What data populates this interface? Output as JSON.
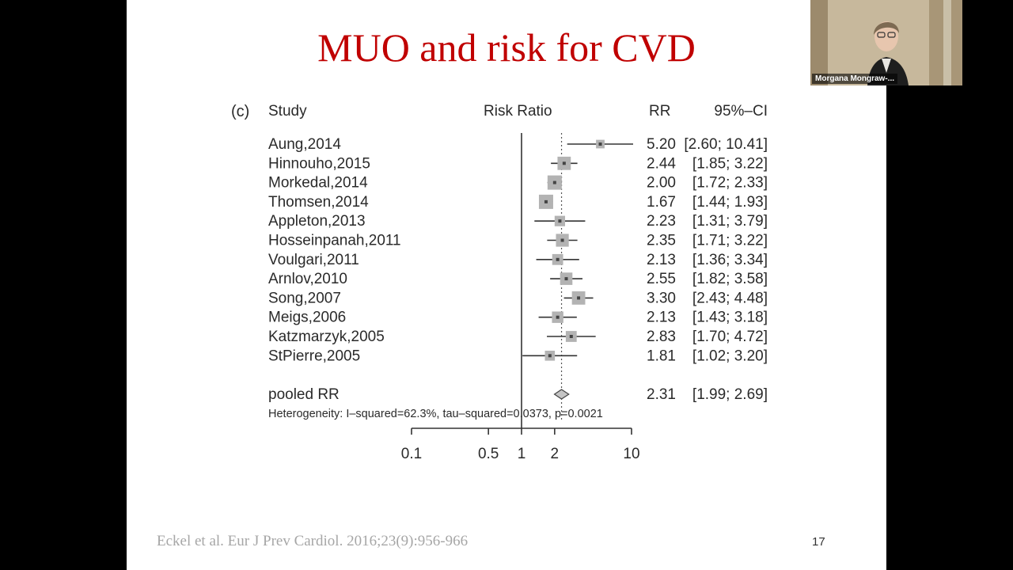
{
  "slide": {
    "title": "MUO and risk for CVD",
    "citation": "Eckel et al. Eur J Prev Cardiol. 2016;23(9):956-966",
    "page_number": "17"
  },
  "video": {
    "speaker_name": "Morgana Mongraw-..."
  },
  "chart_data": {
    "type": "forest",
    "panel_label": "(c)",
    "headers": {
      "study": "Study",
      "measure": "Risk Ratio",
      "rr": "RR",
      "ci": "95%–CI"
    },
    "x_scale": "log",
    "xlim": [
      0.1,
      10
    ],
    "x_ticks": [
      0.1,
      0.5,
      1,
      2,
      10
    ],
    "x_tick_labels": [
      "0.1",
      "0.5",
      "1",
      "2",
      "10"
    ],
    "reference_line": 1,
    "pooled_line": 2.31,
    "studies": [
      {
        "name": "Aung,2014",
        "rr": 5.2,
        "lo": 2.6,
        "hi": 10.41,
        "weight": 0.4,
        "rr_text": "5.20",
        "ci_text": "[2.60; 10.41]"
      },
      {
        "name": "Hinnouho,2015",
        "rr": 2.44,
        "lo": 1.85,
        "hi": 3.22,
        "weight": 0.9,
        "rr_text": "2.44",
        "ci_text": "[1.85; 3.22]"
      },
      {
        "name": "Morkedal,2014",
        "rr": 2.0,
        "lo": 1.72,
        "hi": 2.33,
        "weight": 1.0,
        "rr_text": "2.00",
        "ci_text": "[1.72; 2.33]"
      },
      {
        "name": "Thomsen,2014",
        "rr": 1.67,
        "lo": 1.44,
        "hi": 1.93,
        "weight": 1.0,
        "rr_text": "1.67",
        "ci_text": "[1.44; 1.93]"
      },
      {
        "name": "Appleton,2013",
        "rr": 2.23,
        "lo": 1.31,
        "hi": 3.79,
        "weight": 0.6,
        "rr_text": "2.23",
        "ci_text": "[1.31; 3.79]"
      },
      {
        "name": "Hosseinpanah,2011",
        "rr": 2.35,
        "lo": 1.71,
        "hi": 3.22,
        "weight": 0.85,
        "rr_text": "2.35",
        "ci_text": "[1.71; 3.22]"
      },
      {
        "name": "Voulgari,2011",
        "rr": 2.13,
        "lo": 1.36,
        "hi": 3.34,
        "weight": 0.65,
        "rr_text": "2.13",
        "ci_text": "[1.36; 3.34]"
      },
      {
        "name": "Arnlov,2010",
        "rr": 2.55,
        "lo": 1.82,
        "hi": 3.58,
        "weight": 0.8,
        "rr_text": "2.55",
        "ci_text": "[1.82; 3.58]"
      },
      {
        "name": "Song,2007",
        "rr": 3.3,
        "lo": 2.43,
        "hi": 4.48,
        "weight": 0.9,
        "rr_text": "3.30",
        "ci_text": "[2.43; 4.48]"
      },
      {
        "name": "Meigs,2006",
        "rr": 2.13,
        "lo": 1.43,
        "hi": 3.18,
        "weight": 0.7,
        "rr_text": "2.13",
        "ci_text": "[1.43; 3.18]"
      },
      {
        "name": "Katzmarzyk,2005",
        "rr": 2.83,
        "lo": 1.7,
        "hi": 4.72,
        "weight": 0.65,
        "rr_text": "2.83",
        "ci_text": "[1.70; 4.72]"
      },
      {
        "name": "StPierre,2005",
        "rr": 1.81,
        "lo": 1.02,
        "hi": 3.2,
        "weight": 0.55,
        "rr_text": "1.81",
        "ci_text": "[1.02; 3.20]"
      }
    ],
    "pooled": {
      "name": "pooled RR",
      "rr": 2.31,
      "lo": 1.99,
      "hi": 2.69,
      "rr_text": "2.31",
      "ci_text": "[1.99; 2.69]"
    },
    "heterogeneity": "Heterogeneity: I–squared=62.3%, tau–squared=0.0373, p=0.0021",
    "colors": {
      "box": "#b3b3b3",
      "line": "#333333",
      "title": "#c00000"
    }
  }
}
